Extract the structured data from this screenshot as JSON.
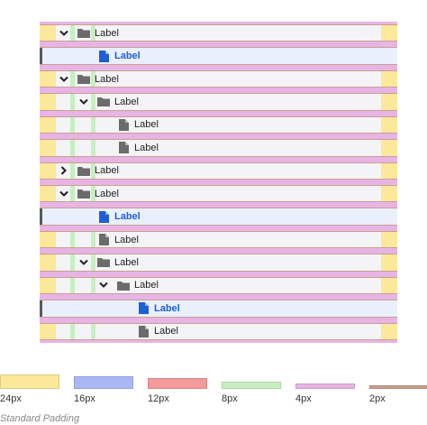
{
  "tree": {
    "rows": [
      {
        "depth": 0,
        "type": "folder",
        "expanded": true,
        "label": "Label",
        "selected": false
      },
      {
        "depth": 1,
        "type": "file",
        "label": "Label",
        "selected": true
      },
      {
        "depth": 0,
        "type": "folder",
        "expanded": true,
        "label": "Label",
        "selected": false
      },
      {
        "depth": 1,
        "type": "folder",
        "expanded": true,
        "label": "Label",
        "selected": false
      },
      {
        "depth": 2,
        "type": "file",
        "label": "Label",
        "selected": false
      },
      {
        "depth": 2,
        "type": "file",
        "label": "Label",
        "selected": false
      },
      {
        "depth": 0,
        "type": "folder",
        "expanded": false,
        "label": "Label",
        "selected": false
      },
      {
        "depth": 0,
        "type": "folder",
        "expanded": true,
        "label": "Label",
        "selected": false
      },
      {
        "depth": 1,
        "type": "file",
        "label": "Label",
        "selected": true
      },
      {
        "depth": 1,
        "type": "file",
        "label": "Label",
        "selected": false
      },
      {
        "depth": 1,
        "type": "folder",
        "expanded": true,
        "label": "Label",
        "selected": false
      },
      {
        "depth": 2,
        "type": "folder",
        "expanded": true,
        "label": "Label",
        "selected": false
      },
      {
        "depth": 3,
        "type": "file",
        "label": "Label",
        "selected": true
      },
      {
        "depth": 3,
        "type": "file",
        "label": "Label",
        "selected": false
      }
    ]
  },
  "icons": {
    "chevron": "chevron-icon",
    "folder": "folder-icon",
    "file": "file-icon"
  },
  "colors": {
    "pad24": "#fbe89a",
    "pad16": "#a9b8f5",
    "pad12": "#f39a9a",
    "pad8": "#c7efc0",
    "pad4": "#e8b4e6",
    "pad2": "#c9a08e",
    "selected_text": "#1f5fd6",
    "folder_icon": "#6b6b6b",
    "file_icon_default": "#6b6b6b",
    "file_icon_selected": "#1f5fd6"
  },
  "legend": {
    "items": [
      {
        "key": "pad24",
        "label": "24px"
      },
      {
        "key": "pad16",
        "label": "16px"
      },
      {
        "key": "pad12",
        "label": "12px"
      },
      {
        "key": "pad8",
        "label": "8px"
      },
      {
        "key": "pad4",
        "label": "4px"
      },
      {
        "key": "pad2",
        "label": "2px"
      }
    ],
    "caption": "Standard Padding"
  }
}
